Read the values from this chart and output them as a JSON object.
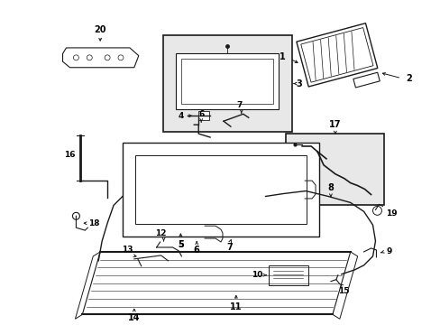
{
  "bg_color": "#ffffff",
  "line_color": "#1a1a1a",
  "fig_width": 4.89,
  "fig_height": 3.6,
  "dpi": 100,
  "gray_fill": "#e8e8e8",
  "light_gray": "#f2f2f2"
}
